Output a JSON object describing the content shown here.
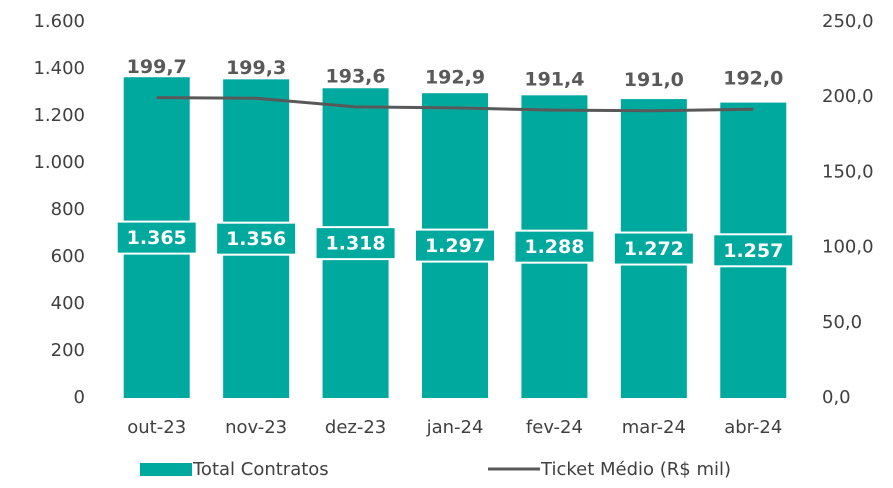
{
  "chart_data": {
    "type": "combo",
    "categories": [
      "out-23",
      "nov-23",
      "dez-23",
      "jan-24",
      "fev-24",
      "mar-24",
      "abr-24"
    ],
    "series": [
      {
        "name": "Total Contratos",
        "type": "bar",
        "color": "#00a99d",
        "values": [
          1365,
          1356,
          1318,
          1297,
          1288,
          1272,
          1257
        ],
        "value_labels": [
          "1.365",
          "1.356",
          "1.318",
          "1.297",
          "1.288",
          "1.272",
          "1.257"
        ]
      },
      {
        "name": "Ticket Médio (R$ mil)",
        "type": "line",
        "axis": "y2",
        "color": "#595959",
        "values": [
          199.7,
          199.3,
          193.6,
          192.9,
          191.4,
          191.0,
          192.0
        ],
        "value_labels": [
          "199,7",
          "199,3",
          "193,6",
          "192,9",
          "191,4",
          "191,0",
          "192,0"
        ]
      }
    ],
    "ylim": [
      0,
      1600
    ],
    "yticks": [
      0,
      200,
      400,
      600,
      800,
      {
        "value": 1000,
        "label": "1.000"
      },
      {
        "value": 1200,
        "label": "1.200"
      },
      {
        "value": 1400,
        "label": "1.400"
      },
      {
        "value": 1600,
        "label": "1.600"
      }
    ],
    "y2lim": [
      0,
      250
    ],
    "y2ticks": [
      {
        "value": 0,
        "label": "0,0"
      },
      {
        "value": 50,
        "label": "50,0"
      },
      {
        "value": 100,
        "label": "100,0"
      },
      {
        "value": 150,
        "label": "150,0"
      },
      {
        "value": 200,
        "label": "200,0"
      },
      {
        "value": 250,
        "label": "250,0"
      }
    ],
    "grid": false,
    "legend": "bottom"
  }
}
